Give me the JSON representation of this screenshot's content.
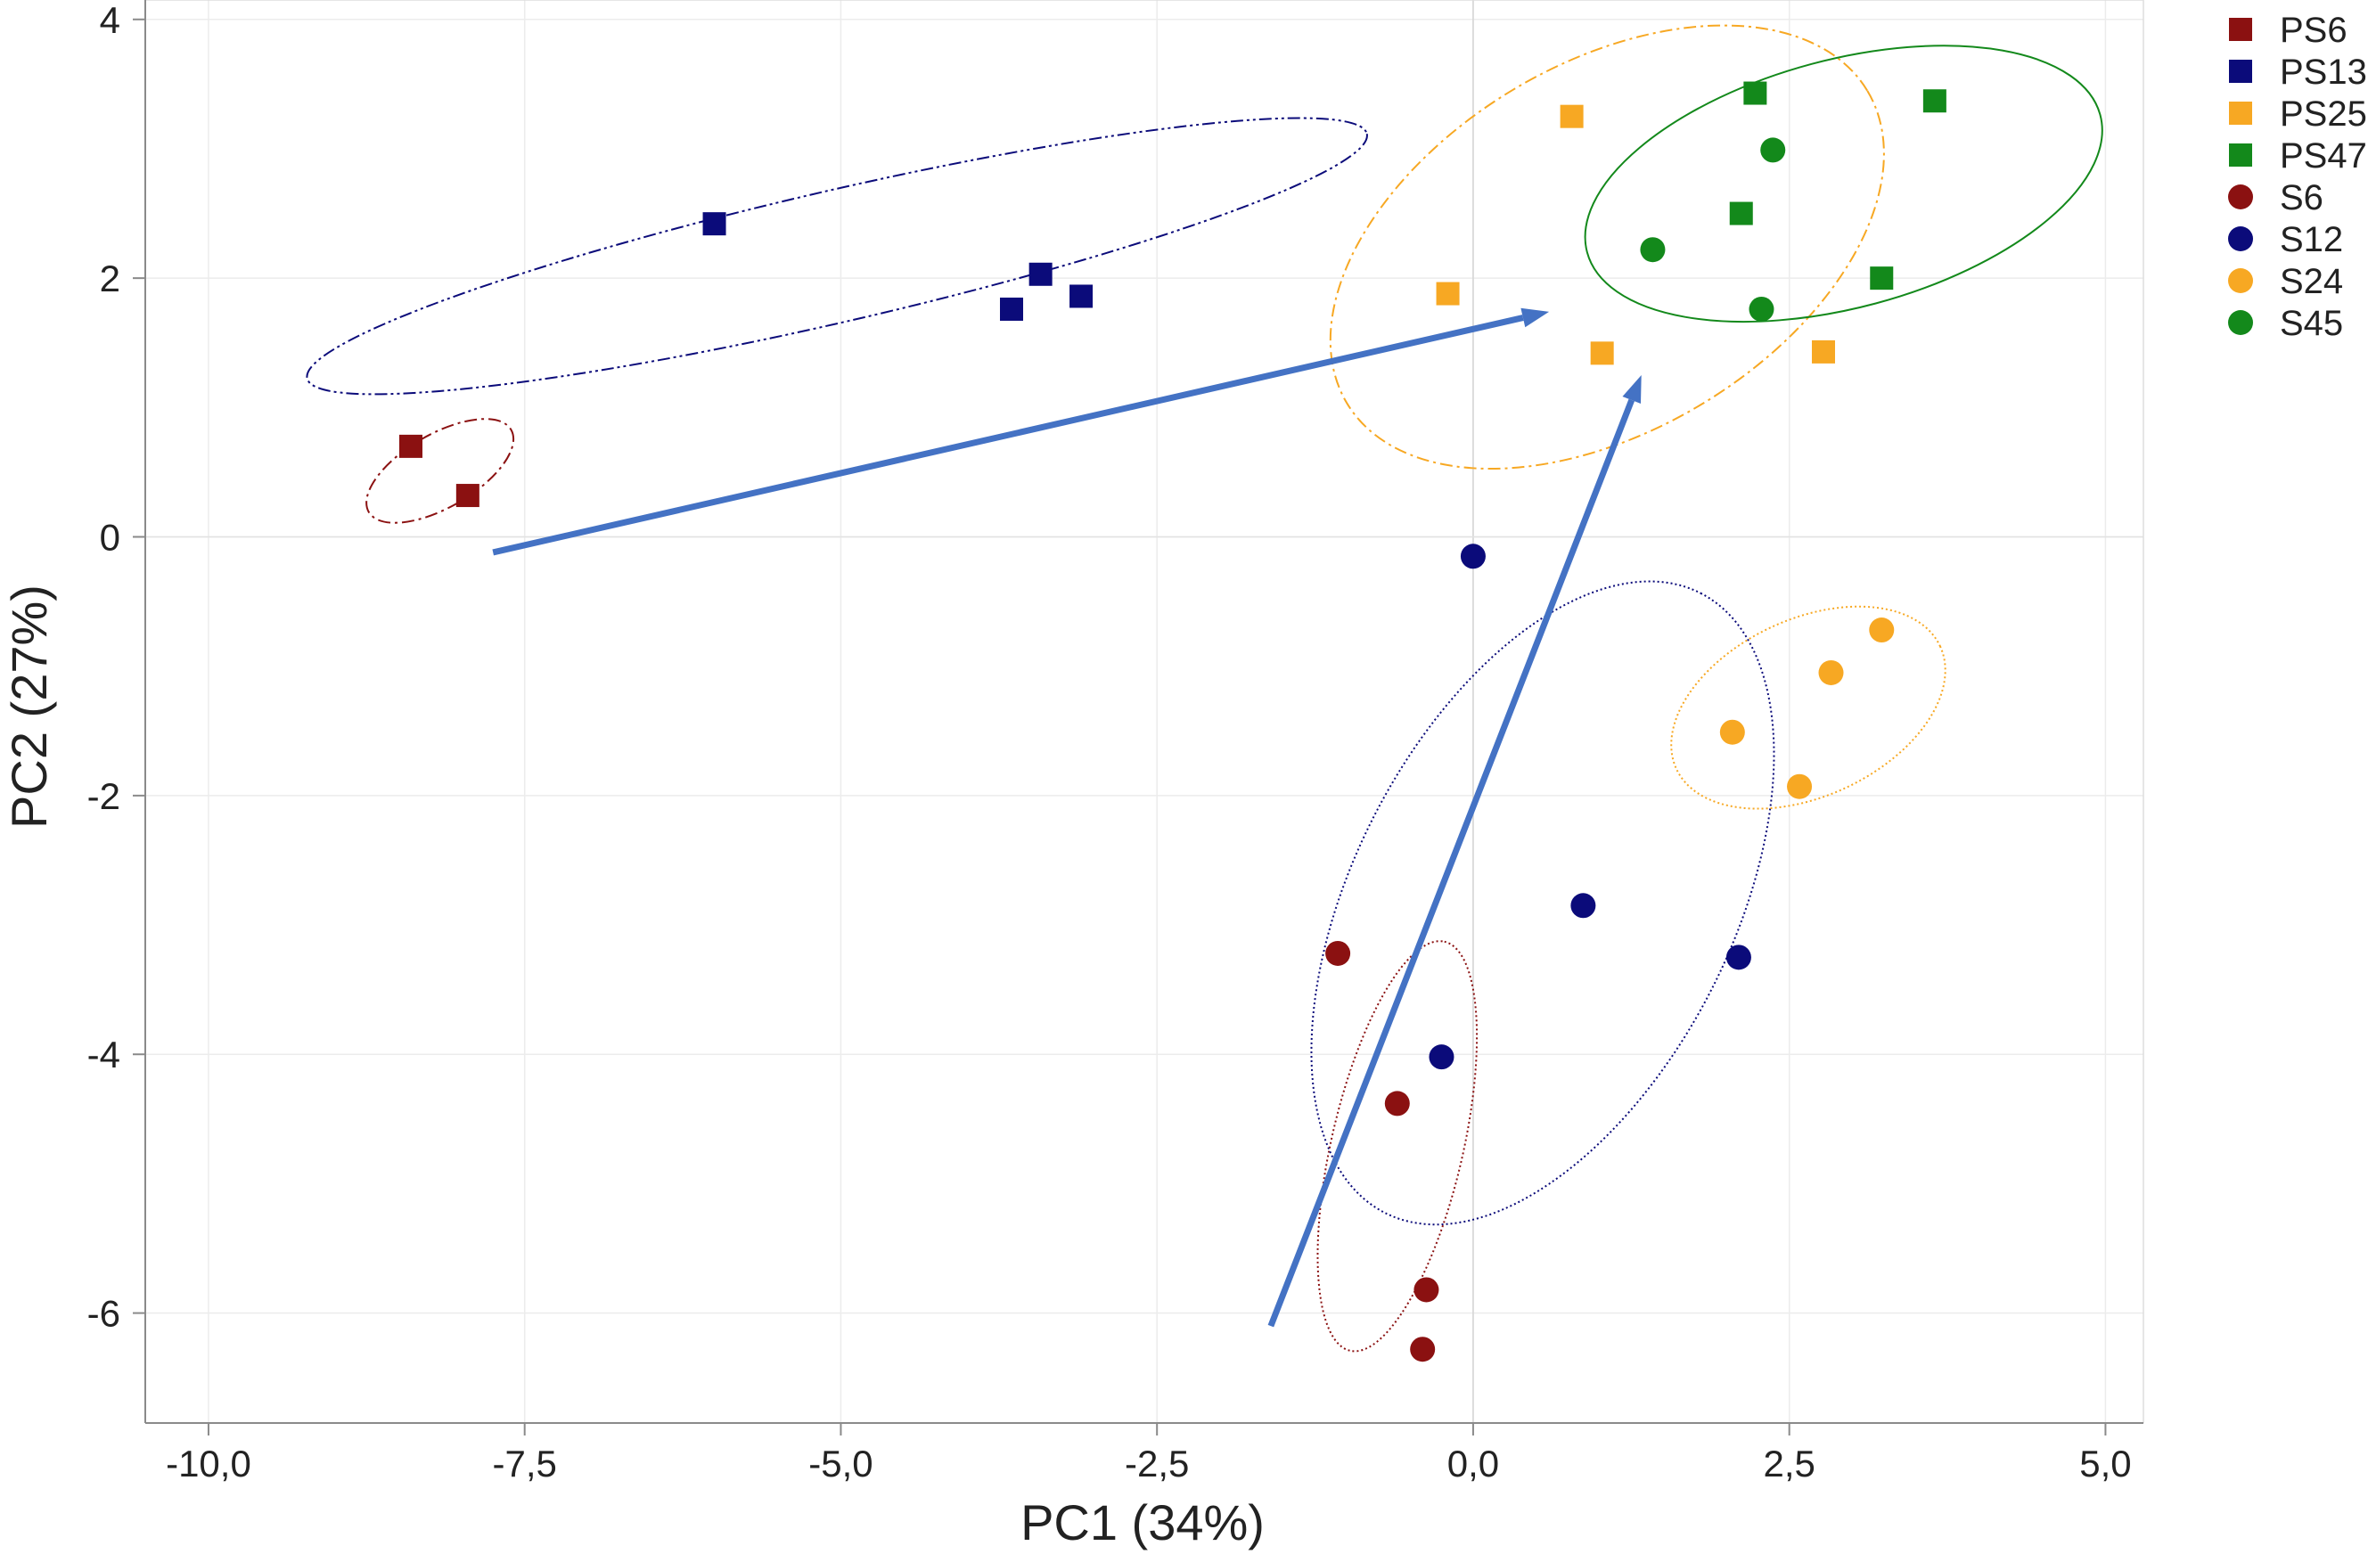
{
  "chart_data": {
    "type": "scatter",
    "title": "",
    "xlabel": "PC1 (34%)",
    "ylabel": "PC2 (27%)",
    "xlim": [
      -10.5,
      5.3
    ],
    "ylim": [
      -6.85,
      4.15
    ],
    "xticks": [
      -10,
      -7.5,
      -5,
      -2.5,
      0,
      2.5,
      5
    ],
    "xtick_labels": [
      "-10,0",
      "-7,5",
      "-5,0",
      "-2,5",
      "0,0",
      "2,5",
      "5,0"
    ],
    "yticks": [
      -6,
      -4,
      -2,
      0,
      2,
      4
    ],
    "ytick_labels": [
      "-6",
      "-4",
      "-2",
      "0",
      "2",
      "4"
    ],
    "grid": true,
    "legend_position": "right-top",
    "series": [
      {
        "name": "PS6",
        "marker": "square",
        "color": "#8B1111",
        "points": [
          [
            -8.4,
            0.7
          ],
          [
            -7.95,
            0.32
          ]
        ]
      },
      {
        "name": "PS13",
        "marker": "square",
        "color": "#0B0B7A",
        "points": [
          [
            -6.0,
            2.42
          ],
          [
            -3.65,
            1.76
          ],
          [
            -3.42,
            2.03
          ],
          [
            -3.1,
            1.86
          ]
        ]
      },
      {
        "name": "PS25",
        "marker": "square",
        "color": "#F7A823",
        "points": [
          [
            0.78,
            3.25
          ],
          [
            -0.2,
            1.88
          ],
          [
            1.02,
            1.42
          ],
          [
            2.77,
            1.43
          ]
        ]
      },
      {
        "name": "PS47",
        "marker": "square",
        "color": "#13891B",
        "points": [
          [
            2.23,
            3.43
          ],
          [
            3.65,
            3.37
          ],
          [
            2.12,
            2.5
          ],
          [
            3.23,
            2.0
          ]
        ]
      },
      {
        "name": "S6",
        "marker": "circle",
        "color": "#8B1111",
        "points": [
          [
            -1.07,
            -3.22
          ],
          [
            -0.6,
            -4.38
          ],
          [
            -0.37,
            -5.82
          ],
          [
            -0.4,
            -6.28
          ]
        ]
      },
      {
        "name": "S12",
        "marker": "circle",
        "color": "#0B0B7A",
        "points": [
          [
            0.0,
            -0.15
          ],
          [
            0.87,
            -2.85
          ],
          [
            2.1,
            -3.25
          ],
          [
            -0.25,
            -4.02
          ]
        ]
      },
      {
        "name": "S24",
        "marker": "circle",
        "color": "#F7A823",
        "points": [
          [
            3.23,
            -0.72
          ],
          [
            2.83,
            -1.05
          ],
          [
            2.05,
            -1.51
          ],
          [
            2.58,
            -1.93
          ]
        ]
      },
      {
        "name": "S45",
        "marker": "circle",
        "color": "#13891B",
        "points": [
          [
            2.37,
            2.99
          ],
          [
            1.42,
            2.22
          ],
          [
            2.28,
            1.76
          ]
        ]
      }
    ],
    "ellipses": [
      {
        "group": "PS6",
        "color": "#8B1111",
        "style": "dash-dot",
        "center": [
          -8.17,
          0.51
        ],
        "radii": [
          0.65,
          0.29
        ],
        "rotation_deg": 30
      },
      {
        "group": "PS13",
        "color": "#0B0B7A",
        "style": "dash-dot-dot",
        "center": [
          -5.03,
          2.17
        ],
        "radii": [
          4.3,
          0.52
        ],
        "rotation_deg": 13
      },
      {
        "group": "PS25",
        "color": "#F7A823",
        "style": "dash-dot",
        "center": [
          1.06,
          2.24
        ],
        "radii": [
          2.4,
          1.45
        ],
        "rotation_deg": 31
      },
      {
        "group": "PS47",
        "color": "#13891B",
        "style": "solid",
        "center": [
          2.93,
          2.73
        ],
        "radii": [
          2.1,
          0.98
        ],
        "rotation_deg": 15
      },
      {
        "group": "S6",
        "color": "#8B1111",
        "style": "dotted",
        "center": [
          -0.6,
          -4.71
        ],
        "radii": [
          1.66,
          0.52
        ],
        "rotation_deg": 77
      },
      {
        "group": "S12",
        "color": "#0B0B7A",
        "style": "dotted",
        "center": [
          0.55,
          -2.83
        ],
        "radii": [
          2.75,
          1.5
        ],
        "rotation_deg": 63
      },
      {
        "group": "S24",
        "color": "#F7A823",
        "style": "dotted",
        "center": [
          2.65,
          -1.32
        ],
        "radii": [
          1.15,
          0.7
        ],
        "rotation_deg": 25
      }
    ],
    "arrows": [
      {
        "from": [
          -7.75,
          -0.12
        ],
        "to": [
          0.6,
          1.74
        ],
        "color": "#4472C4"
      },
      {
        "from": [
          -1.6,
          -6.1
        ],
        "to": [
          1.33,
          1.25
        ],
        "color": "#4472C4"
      }
    ]
  }
}
